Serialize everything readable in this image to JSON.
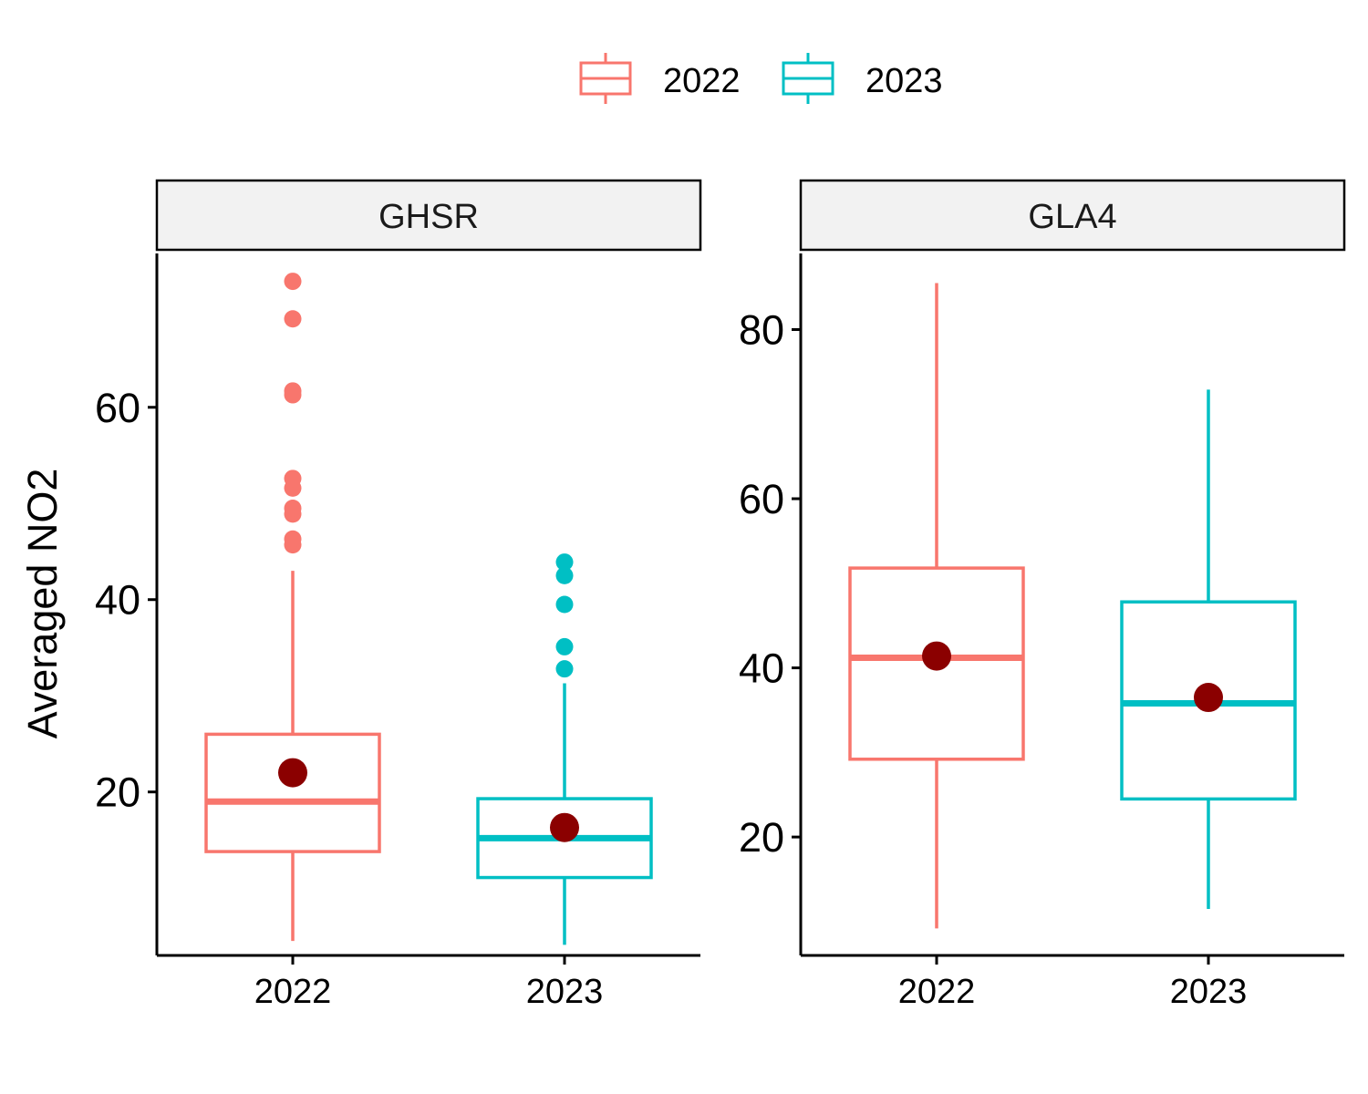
{
  "chart_data": {
    "type": "boxplot",
    "ylabel": "Averaged NO2",
    "legend": {
      "position": "top",
      "items": [
        {
          "label": "2022",
          "color": "#F8766D"
        },
        {
          "label": "2023",
          "color": "#00BFC4"
        }
      ]
    },
    "mean_marker_color": "#8B0000",
    "grid": false,
    "panels": [
      {
        "title": "GHSR",
        "ylim": [
          3,
          76
        ],
        "yticks": [
          20,
          40,
          60
        ],
        "categories": [
          "2022",
          "2023"
        ],
        "boxes": [
          {
            "category": "2022",
            "color": "#F8766D",
            "whisker_low": 4.5,
            "q1": 13.8,
            "median": 19,
            "q3": 26,
            "whisker_high": 43,
            "mean": 22,
            "outliers": [
              45.7,
              46.3,
              48.9,
              49.5,
              51.6,
              52.6,
              61.3,
              61.7,
              69.2,
              73.1
            ]
          },
          {
            "category": "2023",
            "color": "#00BFC4",
            "whisker_low": 4.1,
            "q1": 11.1,
            "median": 15.2,
            "q3": 19.3,
            "whisker_high": 31.3,
            "mean": 16.3,
            "outliers": [
              32.8,
              35.1,
              39.5,
              42.5,
              43.9
            ]
          }
        ]
      },
      {
        "title": "GLA4",
        "ylim": [
          6,
          89
        ],
        "yticks": [
          20,
          40,
          60,
          80
        ],
        "categories": [
          "2022",
          "2023"
        ],
        "boxes": [
          {
            "category": "2022",
            "color": "#F8766D",
            "whisker_low": 9.2,
            "q1": 29.2,
            "median": 41.2,
            "q3": 51.8,
            "whisker_high": 85.5,
            "mean": 41.4,
            "outliers": []
          },
          {
            "category": "2023",
            "color": "#00BFC4",
            "whisker_low": 11.5,
            "q1": 24.5,
            "median": 35.8,
            "q3": 47.8,
            "whisker_high": 72.9,
            "mean": 36.5,
            "outliers": []
          }
        ]
      }
    ]
  }
}
